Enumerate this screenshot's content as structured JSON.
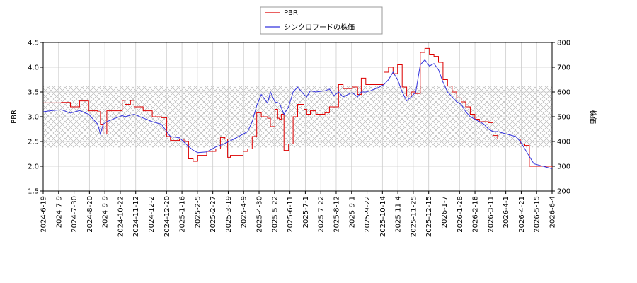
{
  "chart_data": {
    "type": "line",
    "legend_position": "top-center",
    "grid": true,
    "shaded_band": {
      "y_from": 2.38,
      "y_to": 3.62,
      "pattern": "crosshatch"
    },
    "x_ticks": [
      "2024-6-19",
      "2024-7-9",
      "2024-7-30",
      "2024-8-20",
      "2024-9-9",
      "2024-10-22",
      "2024-11-12",
      "2024-12-2",
      "2024-12-20",
      "2025-1-16",
      "2025-2-5",
      "2025-2-27",
      "2025-3-19",
      "2025-4-9",
      "2025-4-30",
      "2025-5-22",
      "2025-6-11",
      "2025-7-1",
      "2025-7-22",
      "2025-8-12",
      "2025-9-1",
      "2025-9-22",
      "2025-10-14",
      "2025-11-4",
      "2025-11-25",
      "2025-12-15",
      "2026-1-7",
      "2026-1-28",
      "2026-2-18",
      "2026-3-11",
      "2026-4-1",
      "2026-4-21",
      "2026-5-15",
      "2026-6-4"
    ],
    "y_left": {
      "label": "PBR",
      "range": [
        1.5,
        4.5
      ],
      "ticks": [
        "1.5",
        "2.0",
        "2.5",
        "3.0",
        "3.5",
        "4.0",
        "4.5"
      ]
    },
    "y_right": {
      "label": "株価",
      "range": [
        200,
        800
      ],
      "ticks": [
        "200",
        "300",
        "400",
        "500",
        "600",
        "700",
        "800"
      ]
    },
    "series": [
      {
        "name": "PBR",
        "color": "#dd0000",
        "axis": "left",
        "points": [
          [
            0,
            3.28
          ],
          [
            2,
            3.29
          ],
          [
            3,
            3.2
          ],
          [
            4,
            3.32
          ],
          [
            5,
            3.12
          ],
          [
            6,
            3.1
          ],
          [
            6.3,
            2.85
          ],
          [
            6.6,
            2.65
          ],
          [
            7,
            3.12
          ],
          [
            8,
            3.12
          ],
          [
            8.7,
            3.33
          ],
          [
            9,
            3.25
          ],
          [
            9.6,
            3.33
          ],
          [
            10,
            3.2
          ],
          [
            11,
            3.12
          ],
          [
            12,
            3.0
          ],
          [
            13,
            2.98
          ],
          [
            13.6,
            2.6
          ],
          [
            14,
            2.52
          ],
          [
            15,
            2.55
          ],
          [
            15.5,
            2.5
          ],
          [
            16,
            2.15
          ],
          [
            16.5,
            2.1
          ],
          [
            17,
            2.22
          ],
          [
            18,
            2.3
          ],
          [
            19,
            2.35
          ],
          [
            19.5,
            2.58
          ],
          [
            20,
            2.55
          ],
          [
            20.3,
            2.18
          ],
          [
            20.6,
            2.22
          ],
          [
            21,
            2.22
          ],
          [
            22,
            2.3
          ],
          [
            22.5,
            2.35
          ],
          [
            23,
            2.6
          ],
          [
            23.5,
            3.08
          ],
          [
            24,
            3.0
          ],
          [
            24.7,
            2.97
          ],
          [
            25,
            2.8
          ],
          [
            25.5,
            3.15
          ],
          [
            25.8,
            2.97
          ],
          [
            26,
            2.95
          ],
          [
            26.2,
            3.05
          ],
          [
            26.5,
            2.32
          ],
          [
            27,
            2.45
          ],
          [
            27.5,
            3.0
          ],
          [
            28,
            3.25
          ],
          [
            28.7,
            3.15
          ],
          [
            29,
            3.05
          ],
          [
            29.4,
            3.12
          ],
          [
            30,
            3.05
          ],
          [
            31,
            3.08
          ],
          [
            31.5,
            3.2
          ],
          [
            32,
            3.2
          ],
          [
            32.5,
            3.65
          ],
          [
            33,
            3.57
          ],
          [
            34,
            3.6
          ],
          [
            34.6,
            3.45
          ],
          [
            35,
            3.78
          ],
          [
            35.5,
            3.65
          ],
          [
            36,
            3.65
          ],
          [
            37,
            3.65
          ],
          [
            37.5,
            3.9
          ],
          [
            38,
            4.0
          ],
          [
            38.5,
            3.87
          ],
          [
            39,
            4.05
          ],
          [
            39.5,
            3.6
          ],
          [
            40,
            3.42
          ],
          [
            40.5,
            3.5
          ],
          [
            41,
            3.47
          ],
          [
            41.5,
            4.3
          ],
          [
            42,
            4.38
          ],
          [
            42.5,
            4.25
          ],
          [
            43,
            4.22
          ],
          [
            43.5,
            4.1
          ],
          [
            44,
            3.75
          ],
          [
            44.5,
            3.62
          ],
          [
            45,
            3.5
          ],
          [
            45.5,
            3.38
          ],
          [
            46,
            3.3
          ],
          [
            46.5,
            3.2
          ],
          [
            47,
            3.05
          ],
          [
            47.5,
            2.95
          ],
          [
            48,
            2.9
          ],
          [
            48.5,
            2.9
          ],
          [
            49,
            2.88
          ],
          [
            49.5,
            2.62
          ],
          [
            50,
            2.55
          ],
          [
            51,
            2.55
          ],
          [
            52,
            2.55
          ],
          [
            52.5,
            2.45
          ],
          [
            53,
            2.42
          ],
          [
            53.5,
            2.0
          ],
          [
            54,
            2.0
          ],
          [
            55,
            2.0
          ],
          [
            56,
            1.98
          ]
        ]
      },
      {
        "name": "シンクロフードの株価",
        "color": "#3333dd",
        "axis": "right",
        "points": [
          [
            0,
            520
          ],
          [
            1,
            525
          ],
          [
            2,
            528
          ],
          [
            3,
            515
          ],
          [
            4,
            525
          ],
          [
            5,
            510
          ],
          [
            6,
            470
          ],
          [
            6.3,
            430
          ],
          [
            6.6,
            470
          ],
          [
            7,
            480
          ],
          [
            8,
            495
          ],
          [
            8.7,
            505
          ],
          [
            9,
            500
          ],
          [
            10,
            510
          ],
          [
            11,
            495
          ],
          [
            12,
            480
          ],
          [
            13,
            470
          ],
          [
            14,
            420
          ],
          [
            15,
            415
          ],
          [
            16,
            380
          ],
          [
            16.5,
            365
          ],
          [
            17,
            355
          ],
          [
            18,
            358
          ],
          [
            19,
            378
          ],
          [
            19.5,
            385
          ],
          [
            20,
            392
          ],
          [
            21,
            410
          ],
          [
            22,
            430
          ],
          [
            22.5,
            440
          ],
          [
            23,
            480
          ],
          [
            23.5,
            545
          ],
          [
            24,
            590
          ],
          [
            24.7,
            555
          ],
          [
            25,
            600
          ],
          [
            25.5,
            560
          ],
          [
            26,
            555
          ],
          [
            26.5,
            510
          ],
          [
            27,
            540
          ],
          [
            27.5,
            600
          ],
          [
            28,
            620
          ],
          [
            28.7,
            590
          ],
          [
            29,
            580
          ],
          [
            29.4,
            605
          ],
          [
            30,
            600
          ],
          [
            31,
            605
          ],
          [
            31.5,
            612
          ],
          [
            32,
            585
          ],
          [
            32.5,
            600
          ],
          [
            33,
            580
          ],
          [
            34,
            598
          ],
          [
            34.6,
            580
          ],
          [
            35,
            600
          ],
          [
            35.5,
            600
          ],
          [
            36,
            605
          ],
          [
            37,
            620
          ],
          [
            37.5,
            630
          ],
          [
            38,
            650
          ],
          [
            38.5,
            680
          ],
          [
            39,
            650
          ],
          [
            39.5,
            600
          ],
          [
            40,
            565
          ],
          [
            40.5,
            580
          ],
          [
            41,
            600
          ],
          [
            41.5,
            710
          ],
          [
            42,
            730
          ],
          [
            42.5,
            705
          ],
          [
            43,
            715
          ],
          [
            43.5,
            690
          ],
          [
            44,
            640
          ],
          [
            44.5,
            600
          ],
          [
            45,
            580
          ],
          [
            45.5,
            560
          ],
          [
            46,
            550
          ],
          [
            46.5,
            520
          ],
          [
            47,
            500
          ],
          [
            47.5,
            490
          ],
          [
            48,
            480
          ],
          [
            48.5,
            470
          ],
          [
            49,
            450
          ],
          [
            49.5,
            440
          ],
          [
            50,
            440
          ],
          [
            51,
            430
          ],
          [
            52,
            420
          ],
          [
            52.5,
            400
          ],
          [
            53,
            370
          ],
          [
            53.5,
            340
          ],
          [
            54,
            310
          ],
          [
            55,
            300
          ],
          [
            56,
            290
          ]
        ]
      }
    ]
  }
}
